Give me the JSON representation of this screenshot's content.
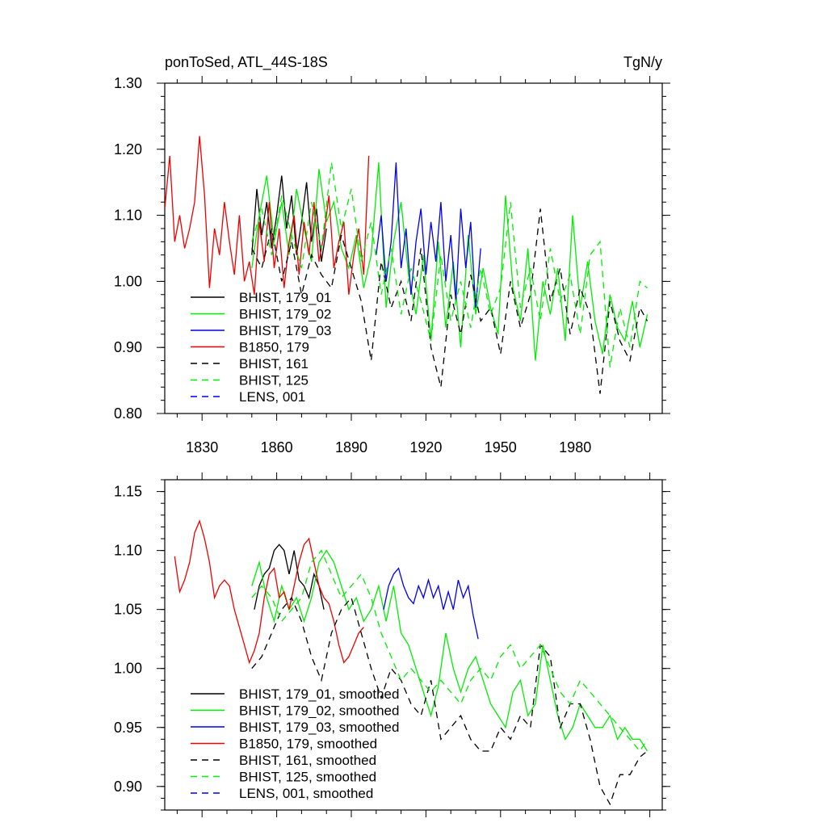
{
  "header": {
    "title_left": "ponToSed, ATL_44S-18S",
    "title_right": "TgN/y"
  },
  "chart_data": [
    {
      "type": "line",
      "title": "",
      "xlim": [
        1815,
        2015
      ],
      "ylim": [
        0.8,
        1.3
      ],
      "x_ticks": [
        1830,
        1860,
        1890,
        1920,
        1950,
        1980
      ],
      "y_ticks": [
        0.8,
        0.9,
        1.0,
        1.1,
        1.2,
        1.3
      ],
      "y_tick_labels": [
        "0.80",
        "0.90",
        "1.00",
        "1.10",
        "1.20",
        "1.30"
      ],
      "legend_position": "bottom-left",
      "series": [
        {
          "name": "BHIST, 179_01",
          "color": "#000000",
          "dash": "solid",
          "x": [
            1850,
            1852,
            1854,
            1856,
            1858,
            1860,
            1862,
            1864,
            1866,
            1868,
            1870,
            1872,
            1874,
            1876,
            1878,
            1880
          ],
          "y": [
            1.04,
            1.14,
            1.07,
            1.12,
            1.05,
            1.1,
            1.16,
            1.08,
            1.13,
            1.04,
            1.09,
            1.15,
            1.06,
            1.11,
            1.03,
            1.08
          ]
        },
        {
          "name": "BHIST, 179_02",
          "color": "#00ee00",
          "dash": "solid",
          "x": [
            1850,
            1853,
            1856,
            1859,
            1862,
            1865,
            1868,
            1871,
            1874,
            1877,
            1880,
            1883,
            1886,
            1889,
            1892,
            1895,
            1898,
            1901,
            1904,
            1907,
            1910,
            1913,
            1916,
            1919,
            1922,
            1925,
            1928,
            1931,
            1934,
            1937,
            1940,
            1943,
            1946,
            1949,
            1952,
            1955,
            1958,
            1961,
            1964,
            1967,
            1970,
            1973,
            1976,
            1979,
            1982,
            1985,
            1988,
            1991,
            1994,
            1997,
            2000,
            2003,
            2006,
            2009
          ],
          "y": [
            1.02,
            1.1,
            1.16,
            1.06,
            1.12,
            1.04,
            1.14,
            1.08,
            1.03,
            1.17,
            1.09,
            1.12,
            1.05,
            1.02,
            1.07,
            0.99,
            1.04,
            1.18,
            0.96,
            1.06,
            1.12,
            1.01,
            0.95,
            1.04,
            0.91,
            1.06,
            0.93,
            1.03,
            0.9,
            1.07,
            0.95,
            1.02,
            0.96,
            0.92,
            1.13,
            0.99,
            0.94,
            1.05,
            0.88,
            1.0,
            0.95,
            1.02,
            0.91,
            1.1,
            0.96,
            1.03,
            0.94,
            0.89,
            0.98,
            0.93,
            0.91,
            0.97,
            0.9,
            0.95
          ]
        },
        {
          "name": "BHIST, 179_03",
          "color": "#0000ee",
          "dash": "solid",
          "x": [
            1900,
            1902,
            1904,
            1906,
            1908,
            1910,
            1912,
            1914,
            1916,
            1918,
            1920,
            1922,
            1924,
            1926,
            1928,
            1930,
            1932,
            1934,
            1936,
            1938,
            1940,
            1942
          ],
          "y": [
            1.04,
            1.1,
            1.0,
            1.06,
            1.18,
            1.02,
            1.08,
            0.98,
            1.06,
            1.11,
            1.01,
            1.09,
            1.03,
            1.12,
            1.0,
            1.07,
            0.97,
            1.11,
            1.02,
            1.09,
            0.96,
            1.05
          ]
        },
        {
          "name": "B1850, 179",
          "color": "#ee0000",
          "dash": "solid",
          "x": [
            1815,
            1817,
            1819,
            1821,
            1823,
            1825,
            1827,
            1829,
            1831,
            1833,
            1835,
            1837,
            1839,
            1841,
            1843,
            1845,
            1847,
            1849,
            1851,
            1853,
            1855,
            1857,
            1859,
            1861,
            1863,
            1865,
            1867,
            1869,
            1871,
            1873,
            1875,
            1877,
            1879,
            1881,
            1883,
            1885,
            1887,
            1889,
            1891,
            1893,
            1895,
            1897
          ],
          "y": [
            1.11,
            1.19,
            1.06,
            1.1,
            1.05,
            1.08,
            1.12,
            1.22,
            1.13,
            0.99,
            1.08,
            1.04,
            1.12,
            1.06,
            1.01,
            1.1,
            1.0,
            1.03,
            0.98,
            1.09,
            1.03,
            1.12,
            1.02,
            1.08,
            0.99,
            1.06,
            1.1,
            1.01,
            1.09,
            1.04,
            1.12,
            1.03,
            1.07,
            1.13,
            1.02,
            1.06,
            1.09,
            0.98,
            1.04,
            1.08,
            1.01,
            1.19
          ]
        },
        {
          "name": "BHIST, 161",
          "color": "#000000",
          "dash": "dashed",
          "x": [
            1850,
            1854,
            1858,
            1862,
            1866,
            1870,
            1874,
            1878,
            1882,
            1886,
            1890,
            1894,
            1898,
            1902,
            1906,
            1910,
            1914,
            1918,
            1922,
            1926,
            1930,
            1934,
            1938,
            1942,
            1946,
            1950,
            1954,
            1958,
            1962,
            1966,
            1970,
            1974,
            1978,
            1982,
            1986,
            1990,
            1994,
            1998,
            2002,
            2006,
            2009
          ],
          "y": [
            1.05,
            1.02,
            1.08,
            1.0,
            1.06,
            0.98,
            1.04,
            1.01,
            0.99,
            1.07,
            1.02,
            0.97,
            0.88,
            1.03,
            0.96,
            1.0,
            0.94,
            1.05,
            0.9,
            0.84,
            0.98,
            0.92,
            1.01,
            0.94,
            0.96,
            0.89,
            1.0,
            0.93,
            0.98,
            1.11,
            0.97,
            1.02,
            0.92,
            0.99,
            0.95,
            0.83,
            0.97,
            0.91,
            0.88,
            0.96,
            0.94
          ]
        },
        {
          "name": "BHIST, 125",
          "color": "#00ee00",
          "dash": "dashed",
          "x": [
            1850,
            1854,
            1858,
            1862,
            1866,
            1870,
            1874,
            1878,
            1882,
            1886,
            1890,
            1894,
            1898,
            1902,
            1906,
            1910,
            1914,
            1918,
            1922,
            1926,
            1930,
            1934,
            1938,
            1942,
            1946,
            1950,
            1954,
            1958,
            1962,
            1966,
            1970,
            1974,
            1978,
            1982,
            1986,
            1990,
            1994,
            1998,
            2002,
            2006,
            2009
          ],
          "y": [
            1.06,
            1.11,
            1.04,
            1.13,
            1.07,
            1.02,
            1.12,
            1.05,
            1.18,
            1.08,
            1.14,
            1.03,
            1.09,
            0.98,
            1.05,
            0.95,
            1.02,
            0.97,
            0.91,
            1.04,
            0.94,
            1.0,
            0.93,
            1.02,
            0.95,
            0.99,
            1.12,
            0.96,
            1.02,
            0.94,
            1.05,
            0.97,
            1.01,
            0.92,
            1.04,
            1.06,
            0.87,
            0.96,
            0.9,
            1.0,
            0.99
          ]
        },
        {
          "name": "LENS, 001",
          "color": "#0000ee",
          "dash": "dashed",
          "x": [],
          "y": []
        }
      ]
    },
    {
      "type": "line",
      "title": "",
      "xlim": [
        1815,
        2015
      ],
      "ylim": [
        0.88,
        1.16
      ],
      "y_ticks": [
        0.9,
        0.95,
        1.0,
        1.05,
        1.1,
        1.15
      ],
      "y_tick_labels": [
        "0.90",
        "0.95",
        "1.00",
        "1.05",
        "1.10",
        "1.15"
      ],
      "legend_position": "bottom-left",
      "series": [
        {
          "name": "BHIST, 179_01, smoothed",
          "color": "#000000",
          "dash": "solid",
          "x": [
            1851,
            1853,
            1855,
            1857,
            1859,
            1861,
            1863,
            1865,
            1867,
            1869,
            1871,
            1873,
            1875,
            1877,
            1879
          ],
          "y": [
            1.05,
            1.07,
            1.08,
            1.085,
            1.1,
            1.105,
            1.1,
            1.08,
            1.1,
            1.075,
            1.07,
            1.06,
            1.08,
            1.07,
            1.05
          ]
        },
        {
          "name": "BHIST, 179_02, smoothed",
          "color": "#00ee00",
          "dash": "solid",
          "x": [
            1850,
            1853,
            1856,
            1859,
            1862,
            1865,
            1868,
            1871,
            1874,
            1877,
            1880,
            1883,
            1886,
            1889,
            1892,
            1895,
            1898,
            1901,
            1904,
            1907,
            1910,
            1913,
            1916,
            1919,
            1922,
            1925,
            1928,
            1931,
            1934,
            1937,
            1940,
            1943,
            1946,
            1949,
            1952,
            1955,
            1958,
            1961,
            1964,
            1967,
            1970,
            1973,
            1976,
            1979,
            1982,
            1985,
            1988,
            1991,
            1994,
            1997,
            2000,
            2003,
            2006,
            2009
          ],
          "y": [
            1.07,
            1.09,
            1.06,
            1.04,
            1.07,
            1.05,
            1.06,
            1.04,
            1.06,
            1.09,
            1.1,
            1.09,
            1.07,
            1.05,
            1.06,
            1.04,
            1.05,
            1.07,
            1.04,
            1.07,
            1.03,
            1.02,
            1.0,
            0.98,
            0.96,
            0.985,
            1.03,
            1.0,
            0.98,
            1.0,
            1.01,
            0.99,
            0.97,
            0.96,
            0.95,
            0.98,
            0.99,
            0.96,
            0.97,
            1.02,
            0.99,
            0.96,
            0.94,
            0.95,
            0.97,
            0.96,
            0.95,
            0.95,
            0.96,
            0.94,
            0.95,
            0.94,
            0.94,
            0.93
          ]
        },
        {
          "name": "BHIST, 179_03, smoothed",
          "color": "#0000ee",
          "dash": "solid",
          "x": [
            1903,
            1905,
            1907,
            1909,
            1911,
            1913,
            1915,
            1917,
            1919,
            1921,
            1923,
            1925,
            1927,
            1929,
            1931,
            1933,
            1935,
            1937,
            1939,
            1941
          ],
          "y": [
            1.05,
            1.07,
            1.08,
            1.085,
            1.07,
            1.06,
            1.055,
            1.07,
            1.06,
            1.075,
            1.06,
            1.07,
            1.05,
            1.065,
            1.05,
            1.075,
            1.06,
            1.07,
            1.045,
            1.025
          ]
        },
        {
          "name": "B1850, 179, smoothed",
          "color": "#ee0000",
          "dash": "solid",
          "x": [
            1819,
            1821,
            1823,
            1825,
            1827,
            1829,
            1831,
            1833,
            1835,
            1837,
            1839,
            1841,
            1843,
            1845,
            1847,
            1849,
            1851,
            1853,
            1855,
            1857,
            1859,
            1861,
            1863,
            1865,
            1867,
            1869,
            1871,
            1873,
            1875,
            1877,
            1879,
            1881,
            1883,
            1885,
            1887,
            1889,
            1891,
            1893,
            1895
          ],
          "y": [
            1.095,
            1.065,
            1.075,
            1.09,
            1.115,
            1.125,
            1.11,
            1.09,
            1.06,
            1.07,
            1.075,
            1.07,
            1.05,
            1.035,
            1.02,
            1.005,
            1.015,
            1.03,
            1.06,
            1.08,
            1.085,
            1.06,
            1.065,
            1.05,
            1.07,
            1.09,
            1.105,
            1.11,
            1.09,
            1.07,
            1.06,
            1.055,
            1.04,
            1.02,
            1.005,
            1.01,
            1.02,
            1.03,
            1.035
          ]
        },
        {
          "name": "BHIST, 161, smoothed",
          "color": "#000000",
          "dash": "dashed",
          "x": [
            1850,
            1854,
            1858,
            1862,
            1866,
            1870,
            1874,
            1878,
            1882,
            1886,
            1890,
            1894,
            1898,
            1902,
            1906,
            1910,
            1914,
            1918,
            1922,
            1926,
            1930,
            1934,
            1938,
            1942,
            1946,
            1950,
            1954,
            1958,
            1962,
            1966,
            1970,
            1974,
            1978,
            1982,
            1986,
            1990,
            1994,
            1998,
            2002,
            2006,
            2009
          ],
          "y": [
            1.0,
            1.01,
            1.03,
            1.05,
            1.06,
            1.04,
            1.01,
            0.99,
            1.03,
            1.05,
            1.06,
            1.03,
            1.0,
            0.975,
            1.0,
            0.99,
            0.97,
            0.96,
            0.99,
            0.94,
            0.95,
            0.96,
            0.94,
            0.93,
            0.93,
            0.95,
            0.94,
            0.96,
            0.95,
            1.02,
            1.01,
            0.95,
            0.97,
            0.97,
            0.94,
            0.9,
            0.885,
            0.91,
            0.91,
            0.925,
            0.93
          ]
        },
        {
          "name": "BHIST, 125, smoothed",
          "color": "#00ee00",
          "dash": "dashed",
          "x": [
            1850,
            1854,
            1858,
            1862,
            1866,
            1870,
            1874,
            1878,
            1882,
            1886,
            1890,
            1894,
            1898,
            1902,
            1906,
            1910,
            1914,
            1918,
            1922,
            1926,
            1930,
            1934,
            1938,
            1942,
            1946,
            1950,
            1954,
            1958,
            1962,
            1966,
            1970,
            1974,
            1978,
            1982,
            1986,
            1990,
            1994,
            1998,
            2002,
            2006,
            2009
          ],
          "y": [
            1.06,
            1.07,
            1.06,
            1.04,
            1.05,
            1.06,
            1.09,
            1.1,
            1.08,
            1.06,
            1.07,
            1.08,
            1.06,
            1.03,
            1.01,
            0.99,
            1.0,
            0.99,
            0.98,
            0.99,
            0.98,
            0.97,
            0.99,
            1.0,
            0.99,
            1.01,
            1.02,
            1.0,
            1.01,
            1.02,
            1.0,
            0.98,
            0.97,
            0.99,
            0.98,
            0.97,
            0.96,
            0.95,
            0.94,
            0.93,
            0.94
          ]
        },
        {
          "name": "LENS, 001, smoothed",
          "color": "#0000ee",
          "dash": "dashed",
          "x": [],
          "y": []
        }
      ]
    }
  ]
}
